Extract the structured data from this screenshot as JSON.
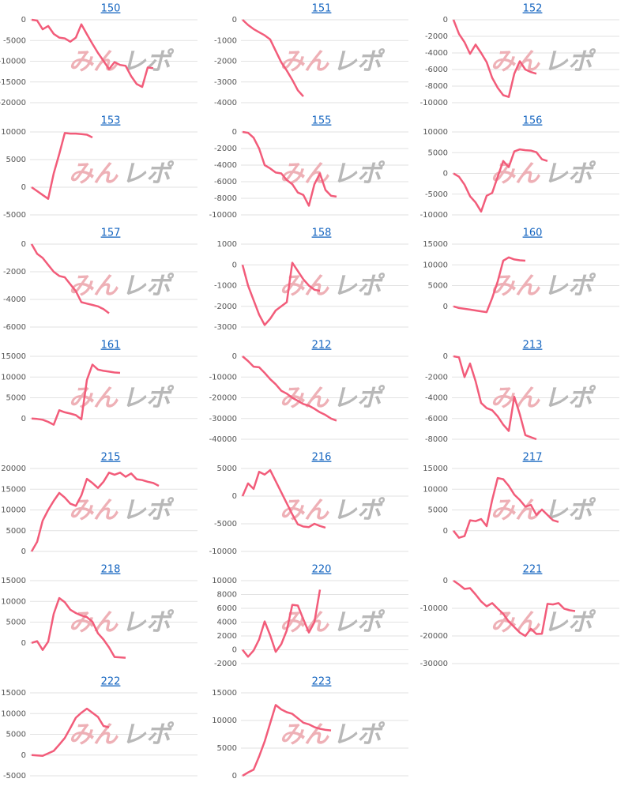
{
  "watermark": [
    "みん",
    "レポ"
  ],
  "chart_data": [
    {
      "type": "line",
      "title": "150",
      "color": "#f25c7a",
      "grid": true,
      "ylim": [
        -20000,
        0
      ],
      "yticks": [
        -20000,
        -15000,
        -10000,
        -5000,
        0
      ],
      "values": [
        0,
        -200,
        -2300,
        -1500,
        -3400,
        -4300,
        -4500,
        -5300,
        -4300,
        -1100,
        -3500,
        -5800,
        -8000,
        -9900,
        -11900,
        -10200,
        -10900,
        -11100,
        -13600,
        -15500,
        -16200,
        -11500,
        -11700
      ]
    },
    {
      "type": "line",
      "title": "151",
      "color": "#f25c7a",
      "grid": true,
      "ylim": [
        -4000,
        0
      ],
      "yticks": [
        -4000,
        -3000,
        -2000,
        -1000,
        0
      ],
      "values": [
        0,
        -250,
        -450,
        -600,
        -750,
        -950,
        -1500,
        -2050,
        -2450,
        -2900,
        -3400,
        -3700
      ]
    },
    {
      "type": "line",
      "title": "152",
      "color": "#f25c7a",
      "grid": true,
      "ylim": [
        -10000,
        0
      ],
      "yticks": [
        -10000,
        -8000,
        -6000,
        -4000,
        -2000,
        0
      ],
      "values": [
        0,
        -1700,
        -2700,
        -4100,
        -3000,
        -4000,
        -5100,
        -7000,
        -8200,
        -9100,
        -9300,
        -6500,
        -5000,
        -6000,
        -6300,
        -6500
      ]
    },
    {
      "type": "line",
      "title": "153",
      "color": "#f25c7a",
      "grid": true,
      "ylim": [
        -5000,
        10000
      ],
      "yticks": [
        -5000,
        0,
        5000,
        10000
      ],
      "values": [
        0,
        -700,
        -1400,
        -2100,
        2500,
        6000,
        9800,
        9700,
        9700,
        9600,
        9500,
        9000
      ]
    },
    {
      "type": "line",
      "title": "155",
      "color": "#f25c7a",
      "grid": true,
      "ylim": [
        -10000,
        0
      ],
      "yticks": [
        -10000,
        -8000,
        -6000,
        -4000,
        -2000,
        0
      ],
      "values": [
        0,
        -100,
        -700,
        -2000,
        -4000,
        -4400,
        -4900,
        -5000,
        -5800,
        -6300,
        -7300,
        -7600,
        -8900,
        -6300,
        -5000,
        -7000,
        -7700,
        -7800
      ]
    },
    {
      "type": "line",
      "title": "156",
      "color": "#f25c7a",
      "grid": true,
      "ylim": [
        -10000,
        10000
      ],
      "yticks": [
        -10000,
        -5000,
        0,
        5000,
        10000
      ],
      "values": [
        0,
        -800,
        -2700,
        -5500,
        -7000,
        -9200,
        -5400,
        -4700,
        -800,
        3000,
        1500,
        5300,
        5800,
        5600,
        5500,
        5100,
        3400,
        3000
      ]
    },
    {
      "type": "line",
      "title": "157",
      "color": "#f25c7a",
      "grid": true,
      "ylim": [
        -6000,
        0
      ],
      "yticks": [
        -6000,
        -4000,
        -2000,
        0
      ],
      "values": [
        0,
        -700,
        -1000,
        -1500,
        -2000,
        -2300,
        -2400,
        -2900,
        -3400,
        -4200,
        -4300,
        -4400,
        -4500,
        -4700,
        -5000
      ]
    },
    {
      "type": "line",
      "title": "158",
      "color": "#f25c7a",
      "grid": true,
      "ylim": [
        -3000,
        1000
      ],
      "yticks": [
        -3000,
        -2000,
        -1000,
        0,
        1000
      ],
      "values": [
        0,
        -1000,
        -1700,
        -2400,
        -2900,
        -2600,
        -2200,
        -2000,
        -1800,
        100,
        -300,
        -700,
        -1000,
        -1200,
        -1250
      ]
    },
    {
      "type": "line",
      "title": "160",
      "color": "#f25c7a",
      "grid": true,
      "ylim": [
        -5000,
        15000
      ],
      "yticks": [
        0,
        5000,
        10000,
        15000
      ],
      "values": [
        0,
        -400,
        -600,
        -800,
        -1000,
        -1200,
        -1400,
        2000,
        6000,
        11000,
        11800,
        11300,
        11100,
        11000
      ]
    },
    {
      "type": "line",
      "title": "161",
      "color": "#f25c7a",
      "grid": true,
      "ylim": [
        -5000,
        15000
      ],
      "yticks": [
        0,
        5000,
        10000,
        15000
      ],
      "values": [
        0,
        -100,
        -300,
        -800,
        -1500,
        2000,
        1500,
        1200,
        800,
        -200,
        9300,
        13000,
        11800,
        11500,
        11300,
        11100,
        11000
      ]
    },
    {
      "type": "line",
      "title": "212",
      "color": "#f25c7a",
      "grid": true,
      "ylim": [
        -40000,
        0
      ],
      "yticks": [
        -40000,
        -30000,
        -20000,
        -10000,
        0
      ],
      "values": [
        0,
        -2300,
        -5000,
        -5300,
        -8000,
        -11000,
        -13500,
        -16600,
        -18000,
        -20000,
        -21500,
        -23000,
        -23800,
        -25300,
        -27000,
        -28300,
        -30000,
        -31000
      ]
    },
    {
      "type": "line",
      "title": "213",
      "color": "#f25c7a",
      "grid": true,
      "ylim": [
        -8000,
        0
      ],
      "yticks": [
        -8000,
        -6000,
        -4000,
        -2000,
        0
      ],
      "values": [
        0,
        -100,
        -2000,
        -700,
        -2400,
        -4500,
        -5000,
        -5200,
        -5800,
        -6600,
        -7200,
        -3900,
        -5600,
        -7600,
        -7800,
        -8000
      ]
    },
    {
      "type": "line",
      "title": "215",
      "color": "#f25c7a",
      "grid": true,
      "ylim": [
        0,
        20000
      ],
      "yticks": [
        0,
        5000,
        10000,
        15000,
        20000
      ],
      "values": [
        0,
        2300,
        7400,
        10000,
        12200,
        14100,
        13000,
        11500,
        11000,
        13500,
        17500,
        16500,
        15300,
        16800,
        19000,
        18500,
        19000,
        18000,
        18800,
        17400,
        17200,
        16800,
        16500,
        15800
      ]
    },
    {
      "type": "line",
      "title": "216",
      "color": "#f25c7a",
      "grid": true,
      "ylim": [
        -10000,
        5000
      ],
      "yticks": [
        -10000,
        -5000,
        0,
        5000
      ],
      "values": [
        0,
        2300,
        1300,
        4400,
        3900,
        4700,
        2700,
        700,
        -1300,
        -3300,
        -5100,
        -5500,
        -5600,
        -5000,
        -5400,
        -5700
      ]
    },
    {
      "type": "line",
      "title": "217",
      "color": "#f25c7a",
      "grid": true,
      "ylim": [
        -5000,
        15000
      ],
      "yticks": [
        0,
        5000,
        10000,
        15000
      ],
      "values": [
        0,
        -1700,
        -1300,
        2500,
        2300,
        2800,
        1100,
        7400,
        12700,
        12400,
        10800,
        8700,
        7400,
        5800,
        6200,
        3800,
        5100,
        3800,
        2500,
        2100
      ]
    },
    {
      "type": "line",
      "title": "218",
      "color": "#f25c7a",
      "grid": true,
      "ylim": [
        -5000,
        15000
      ],
      "yticks": [
        0,
        5000,
        10000,
        15000
      ],
      "values": [
        0,
        400,
        -1700,
        300,
        7000,
        10800,
        9800,
        8000,
        7200,
        6600,
        6200,
        5100,
        2300,
        800,
        -1100,
        -3400,
        -3500,
        -3600
      ]
    },
    {
      "type": "line",
      "title": "220",
      "color": "#f25c7a",
      "grid": true,
      "ylim": [
        -2000,
        10000
      ],
      "yticks": [
        -2000,
        0,
        2000,
        4000,
        6000,
        8000,
        10000
      ],
      "values": [
        0,
        -1000,
        -100,
        1500,
        4100,
        2100,
        -300,
        800,
        2800,
        6500,
        6400,
        4400,
        2500,
        4000,
        8700
      ]
    },
    {
      "type": "line",
      "title": "221",
      "color": "#f25c7a",
      "grid": true,
      "ylim": [
        -30000,
        0
      ],
      "yticks": [
        -30000,
        -20000,
        -10000,
        0
      ],
      "values": [
        0,
        -1400,
        -3000,
        -2700,
        -5000,
        -7500,
        -9300,
        -8100,
        -10100,
        -12000,
        -14800,
        -16800,
        -18800,
        -20000,
        -17400,
        -19300,
        -19200,
        -8400,
        -8600,
        -8100,
        -10100,
        -10700,
        -11000
      ]
    },
    {
      "type": "line",
      "title": "222",
      "color": "#f25c7a",
      "grid": true,
      "ylim": [
        -5000,
        15000
      ],
      "yticks": [
        -5000,
        0,
        5000,
        10000,
        15000
      ],
      "values": [
        0,
        -100,
        -200,
        400,
        1000,
        2500,
        4100,
        6500,
        9000,
        10200,
        11200,
        10200,
        9200,
        7000,
        6700
      ]
    },
    {
      "type": "line",
      "title": "223",
      "color": "#f25c7a",
      "grid": true,
      "ylim": [
        0,
        15000
      ],
      "yticks": [
        0,
        5000,
        10000,
        15000
      ],
      "values": [
        0,
        600,
        1100,
        3500,
        6200,
        9500,
        12800,
        12000,
        11500,
        11200,
        10400,
        9600,
        9300,
        8800,
        8500,
        8300,
        8200
      ]
    }
  ]
}
